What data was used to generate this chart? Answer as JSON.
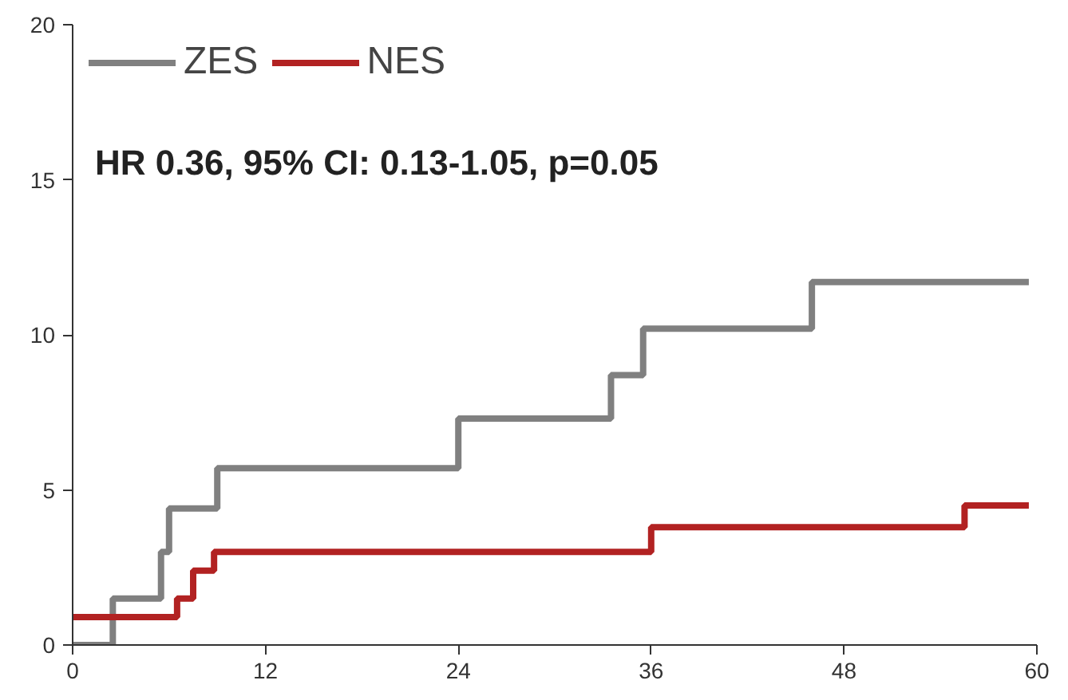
{
  "chart_data": {
    "type": "step",
    "xlim": [
      0,
      60
    ],
    "ylim": [
      0,
      20
    ],
    "xticks": [
      0,
      12,
      24,
      36,
      48,
      60
    ],
    "yticks": [
      0,
      5,
      10,
      15,
      20
    ],
    "grid": false,
    "legend": "top left",
    "line_style": "solid",
    "marker": "none",
    "annotations": [
      "HR 0.36, 95% CI: 0.13-1.05, p=0.05"
    ],
    "series": [
      {
        "name": "ZES",
        "color": "#808080",
        "x": [
          0,
          2.5,
          5.5,
          6,
          9,
          24,
          33.5,
          35.5,
          46,
          59.5
        ],
        "values": [
          0,
          1.5,
          3.0,
          4.4,
          5.7,
          7.3,
          8.7,
          10.2,
          11.7,
          11.7
        ]
      },
      {
        "name": "NES",
        "color": "#b22222",
        "x": [
          0,
          6.5,
          7.5,
          8.8,
          36,
          55.5,
          59.5
        ],
        "values": [
          0.9,
          1.5,
          2.4,
          3.0,
          3.8,
          4.5,
          4.5
        ]
      }
    ]
  }
}
